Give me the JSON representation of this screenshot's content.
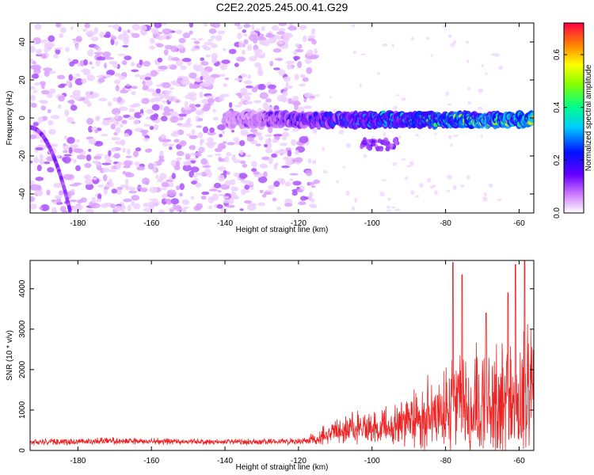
{
  "title": "C2E2.2025.245.00.41.G29",
  "colors": {
    "snr_line": "#ee2222",
    "axes": "#000000"
  },
  "chart_data": [
    {
      "type": "heatmap",
      "title": "C2E2.2025.245.00.41.G29",
      "xlabel": "Height of straight line (km)",
      "ylabel": "Frequency (Hz)",
      "xlim": [
        -193,
        -56
      ],
      "ylim": [
        -50,
        50
      ],
      "xticks": [
        -180,
        -160,
        -140,
        -120,
        -100,
        -80,
        -60
      ],
      "xtick_labels": [
        "-180",
        "-160",
        "-140",
        "-120",
        "-100",
        "-80",
        "-60"
      ],
      "yticks": [
        -40,
        -20,
        0,
        20,
        40
      ],
      "ytick_labels": [
        "-40",
        "-20",
        "0",
        "20",
        "40"
      ],
      "colorbar": {
        "label": "Normalized spectral amplitude",
        "range": [
          0,
          0.72
        ],
        "ticks": [
          0.0,
          0.2,
          0.4,
          0.6
        ],
        "tick_labels": [
          "0.0",
          "0.2",
          "0.4",
          "0.6"
        ]
      },
      "features": [
        {
          "name": "noise-scatter",
          "x_range": [
            -193,
            -115
          ],
          "freq_range": [
            -50,
            50
          ],
          "amplitude": 0.05
        },
        {
          "name": "tone-line",
          "x_range": [
            -140,
            -56
          ],
          "freq_hz": -1,
          "amplitude_start": 0.1,
          "amplitude_end": 0.6
        },
        {
          "name": "side-blob",
          "x_range": [
            -103,
            -93
          ],
          "freq_hz": -14,
          "amplitude": 0.1
        },
        {
          "name": "low-edge-arc",
          "x_range": [
            -193,
            -182
          ],
          "freq_range": [
            -50,
            -5
          ],
          "amplitude": 0.1
        }
      ]
    },
    {
      "type": "line",
      "title": "",
      "xlabel": "Height of straight line (km)",
      "ylabel": "SNR (10 * v/v)",
      "xlim": [
        -193,
        -56
      ],
      "ylim": [
        0,
        4700
      ],
      "xticks": [
        -180,
        -160,
        -140,
        -120,
        -100,
        -80,
        -60
      ],
      "xtick_labels": [
        "-180",
        "-160",
        "-140",
        "-120",
        "-100",
        "-80",
        "-60"
      ],
      "yticks": [
        0,
        1000,
        2000,
        3000,
        4000
      ],
      "ytick_labels": [
        "0",
        "1000",
        "2000",
        "3000",
        "4000"
      ],
      "series": [
        {
          "name": "SNR",
          "x": [
            -193,
            -180,
            -170,
            -160,
            -150,
            -140,
            -130,
            -120,
            -115,
            -110,
            -105,
            -100,
            -95,
            -90,
            -85,
            -80,
            -75,
            -70,
            -65,
            -60,
            -56
          ],
          "baseline": [
            200,
            210,
            230,
            220,
            210,
            200,
            210,
            220,
            260,
            450,
            520,
            520,
            560,
            600,
            800,
            900,
            1000,
            1000,
            1000,
            1000,
            1200
          ],
          "spread": [
            170,
            180,
            180,
            160,
            150,
            150,
            160,
            180,
            300,
            700,
            800,
            800,
            900,
            1300,
            1700,
            2200,
            2600,
            2800,
            2700,
            3000,
            3200
          ],
          "peaks": [
            {
              "x": -78,
              "y": 4650
            },
            {
              "x": -75.5,
              "y": 4350
            },
            {
              "x": -61,
              "y": 4600
            },
            {
              "x": -58.5,
              "y": 4700
            },
            {
              "x": -63,
              "y": 3900
            },
            {
              "x": -69,
              "y": 3400
            }
          ]
        }
      ]
    }
  ]
}
